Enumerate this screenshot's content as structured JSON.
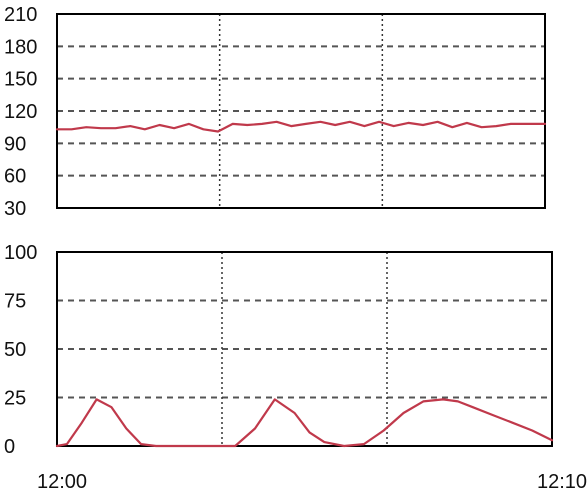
{
  "chart_data": [
    {
      "type": "line",
      "ylim": [
        30,
        210
      ],
      "y_ticks": [
        "210",
        "180",
        "150",
        "120",
        "90",
        "60",
        "30"
      ],
      "grid": true,
      "x_range_minutes": [
        0,
        10
      ],
      "series": [
        {
          "color": "#c0394b",
          "x": [
            0,
            0.3,
            0.6,
            0.9,
            1.2,
            1.5,
            1.8,
            2.1,
            2.4,
            2.7,
            3.0,
            3.3,
            3.6,
            3.9,
            4.2,
            4.5,
            4.8,
            5.1,
            5.4,
            5.7,
            6.0,
            6.3,
            6.6,
            6.9,
            7.2,
            7.5,
            7.8,
            8.1,
            8.4,
            8.7,
            9.0,
            9.3,
            9.6,
            10
          ],
          "y": [
            103,
            103,
            105,
            104,
            104,
            106,
            103,
            107,
            104,
            108,
            103,
            101,
            108,
            107,
            108,
            110,
            106,
            108,
            110,
            107,
            110,
            106,
            110,
            106,
            109,
            107,
            110,
            105,
            109,
            105,
            106,
            108,
            108,
            108
          ]
        }
      ]
    },
    {
      "type": "line",
      "ylim": [
        0,
        100
      ],
      "y_ticks": [
        "100",
        "75",
        "50",
        "25",
        "0"
      ],
      "x_ticks": [
        "12:00",
        "12:10"
      ],
      "x_range_minutes": [
        0,
        10
      ],
      "grid": true,
      "series": [
        {
          "color": "#c0394b",
          "x": [
            0,
            0.2,
            0.5,
            0.8,
            1.1,
            1.4,
            1.7,
            2.0,
            2.4,
            2.8,
            3.2,
            3.6,
            4.0,
            4.4,
            4.8,
            5.1,
            5.4,
            5.8,
            6.2,
            6.6,
            7.0,
            7.4,
            7.8,
            8.1,
            8.4,
            8.8,
            9.2,
            9.6,
            10
          ],
          "y": [
            0,
            1,
            12,
            24,
            20,
            9,
            1,
            0,
            0,
            0,
            0,
            0,
            9,
            24,
            17,
            7,
            2,
            0,
            1,
            8,
            17,
            23,
            24,
            23,
            20,
            16,
            12,
            8,
            3
          ]
        }
      ]
    }
  ]
}
